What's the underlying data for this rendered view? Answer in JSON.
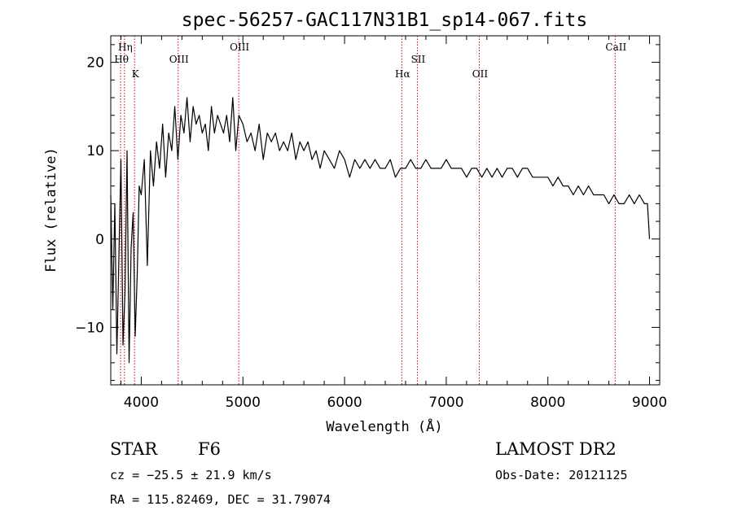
{
  "chart_data": {
    "type": "line",
    "title": "spec-56257-GAC117N31B1_sp14-067.fits",
    "xlabel": "Wavelength (Å)",
    "ylabel": "Flux (relative)",
    "xlim": [
      3700,
      9100
    ],
    "ylim": [
      -16.5,
      23
    ],
    "xticks": [
      {
        "value": 4000,
        "label": "4000"
      },
      {
        "value": 5000,
        "label": "5000"
      },
      {
        "value": 6000,
        "label": "6000"
      },
      {
        "value": 7000,
        "label": "7000"
      },
      {
        "value": 8000,
        "label": "8000"
      },
      {
        "value": 9000,
        "label": "9000"
      }
    ],
    "yticks": [
      {
        "value": 20,
        "label": "20"
      },
      {
        "value": 10,
        "label": "10"
      },
      {
        "value": 0,
        "label": "0"
      },
      {
        "value": -10,
        "label": "−10"
      }
    ],
    "spectral_lines": [
      {
        "name": "Hη",
        "wavelength": 3835,
        "label_row": 1
      },
      {
        "name": "Hθ",
        "wavelength": 3797,
        "label_row": 2
      },
      {
        "name": "K",
        "wavelength": 3934,
        "label_row": 3
      },
      {
        "name": "OIII",
        "wavelength": 4363,
        "label_row": 2
      },
      {
        "name": "OIII",
        "wavelength": 4959,
        "label_row": 1
      },
      {
        "name": "Hα",
        "wavelength": 6563,
        "label_row": 3
      },
      {
        "name": "SII",
        "wavelength": 6716,
        "label_row": 2
      },
      {
        "name": "OII",
        "wavelength": 7325,
        "label_row": 3
      },
      {
        "name": "CaII",
        "wavelength": 8662,
        "label_row": 1
      }
    ],
    "line_color": "#000000",
    "marker_line_color": "#cc0000",
    "series": [
      {
        "x": [
          3700,
          3720,
          3740,
          3760,
          3780,
          3800,
          3820,
          3840,
          3860,
          3880,
          3900,
          3920,
          3940,
          3960,
          3980,
          4000,
          4030,
          4060,
          4090,
          4120,
          4150,
          4180,
          4210,
          4240,
          4270,
          4300,
          4330,
          4360,
          4390,
          4420,
          4450,
          4480,
          4510,
          4540,
          4570,
          4600,
          4630,
          4660,
          4690,
          4720,
          4750,
          4780,
          4810,
          4840,
          4870,
          4900,
          4930,
          4960,
          5000,
          5040,
          5080,
          5120,
          5160,
          5200,
          5240,
          5280,
          5320,
          5360,
          5400,
          5440,
          5480,
          5520,
          5560,
          5600,
          5640,
          5680,
          5720,
          5760,
          5800,
          5850,
          5900,
          5950,
          6000,
          6050,
          6100,
          6150,
          6200,
          6250,
          6300,
          6350,
          6400,
          6450,
          6500,
          6550,
          6600,
          6650,
          6700,
          6750,
          6800,
          6850,
          6900,
          6950,
          7000,
          7050,
          7100,
          7150,
          7200,
          7250,
          7300,
          7350,
          7400,
          7450,
          7500,
          7550,
          7600,
          7650,
          7700,
          7750,
          7800,
          7850,
          7900,
          7950,
          8000,
          8050,
          8100,
          8150,
          8200,
          8250,
          8300,
          8350,
          8400,
          8450,
          8500,
          8550,
          8600,
          8650,
          8700,
          8750,
          8800,
          8850,
          8900,
          8950,
          8980,
          9000
        ],
        "y": [
          5,
          -8,
          4,
          -13,
          -2,
          9,
          -12,
          -6,
          10,
          -14,
          -1,
          3,
          -11,
          -4,
          6,
          5,
          9,
          -3,
          10,
          6,
          11,
          8,
          13,
          7,
          12,
          10,
          15,
          9,
          14,
          12,
          16,
          11,
          15,
          13,
          14,
          12,
          13,
          10,
          15,
          12,
          14,
          13,
          12,
          14,
          11,
          16,
          10,
          14,
          13,
          11,
          12,
          10,
          13,
          9,
          12,
          11,
          12,
          10,
          11,
          10,
          12,
          9,
          11,
          10,
          11,
          9,
          10,
          8,
          10,
          9,
          8,
          10,
          9,
          7,
          9,
          8,
          9,
          8,
          9,
          8,
          8,
          9,
          7,
          8,
          8,
          9,
          8,
          8,
          9,
          8,
          8,
          8,
          9,
          8,
          8,
          8,
          7,
          8,
          8,
          7,
          8,
          7,
          8,
          7,
          8,
          8,
          7,
          8,
          8,
          7,
          7,
          7,
          7,
          6,
          7,
          6,
          6,
          5,
          6,
          5,
          6,
          5,
          5,
          5,
          4,
          5,
          4,
          4,
          5,
          4,
          5,
          4,
          4,
          0
        ]
      }
    ]
  },
  "info": {
    "object_class": "STAR",
    "subclass": "F6",
    "redshift_text": "cz = −25.5 ± 21.9 km/s",
    "coords_text": "RA = 115.82469, DEC =  31.79074",
    "survey": "LAMOST DR2",
    "obs_date_text": "Obs-Date: 20121125"
  }
}
